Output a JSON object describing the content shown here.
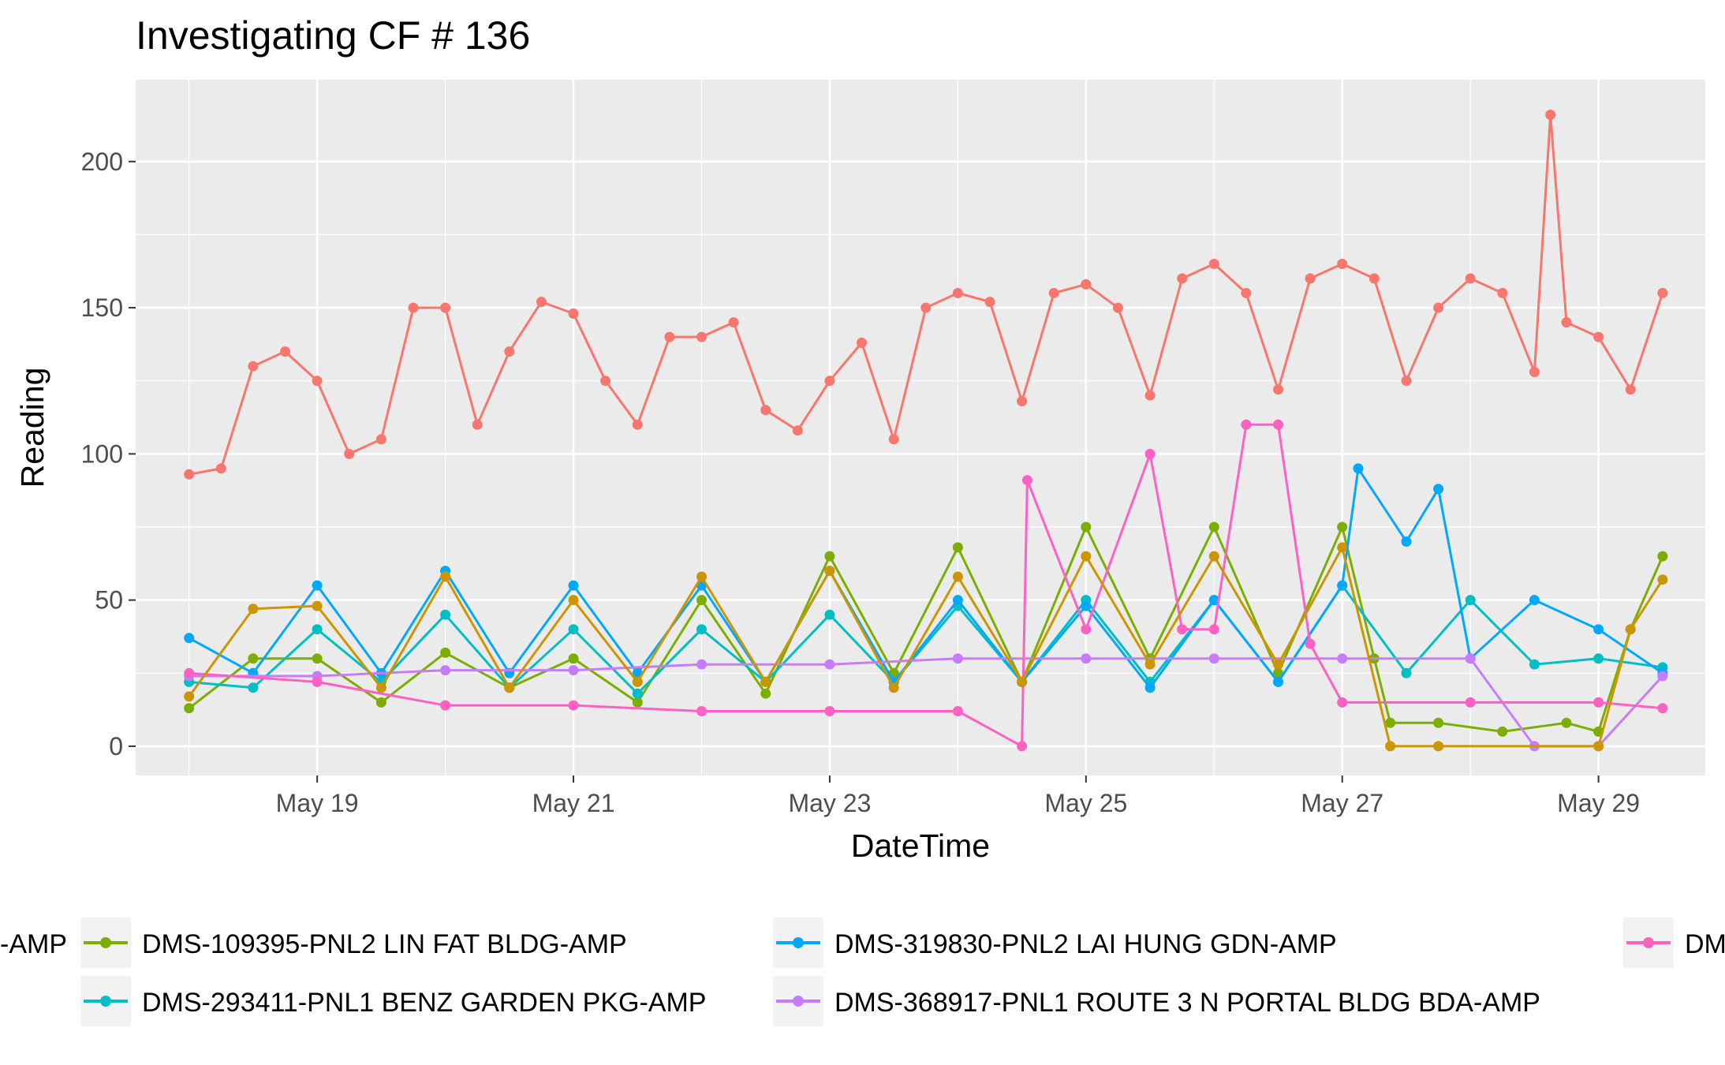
{
  "chart_data": {
    "type": "line",
    "title": "Investigating CF # 136",
    "xlabel": "DateTime",
    "ylabel": "Reading",
    "x_range": [
      "2024-05-17 14:00",
      "2024-05-29 20:00"
    ],
    "ylim": [
      -10,
      228
    ],
    "y_ticks": [
      0,
      50,
      100,
      150,
      200
    ],
    "x_ticks": [
      {
        "value": "2024-05-19",
        "label": "May 19"
      },
      {
        "value": "2024-05-21",
        "label": "May 21"
      },
      {
        "value": "2024-05-23",
        "label": "May 23"
      },
      {
        "value": "2024-05-25",
        "label": "May 25"
      },
      {
        "value": "2024-05-27",
        "label": "May 27"
      },
      {
        "value": "2024-05-29",
        "label": "May 29"
      }
    ],
    "grid": true,
    "legend_position": "bottom",
    "markers": "points",
    "series": [
      {
        "name": "-AMP",
        "color": "#F8766D",
        "x": [
          "2024-05-18 00:00",
          "2024-05-18 06:00",
          "2024-05-18 12:00",
          "2024-05-18 18:00",
          "2024-05-19 00:00",
          "2024-05-19 06:00",
          "2024-05-19 12:00",
          "2024-05-19 18:00",
          "2024-05-20 00:00",
          "2024-05-20 06:00",
          "2024-05-20 12:00",
          "2024-05-20 18:00",
          "2024-05-21 00:00",
          "2024-05-21 06:00",
          "2024-05-21 12:00",
          "2024-05-21 18:00",
          "2024-05-22 00:00",
          "2024-05-22 06:00",
          "2024-05-22 12:00",
          "2024-05-22 18:00",
          "2024-05-23 00:00",
          "2024-05-23 06:00",
          "2024-05-23 12:00",
          "2024-05-23 18:00",
          "2024-05-24 00:00",
          "2024-05-24 06:00",
          "2024-05-24 12:00",
          "2024-05-24 18:00",
          "2024-05-25 00:00",
          "2024-05-25 06:00",
          "2024-05-25 12:00",
          "2024-05-25 18:00",
          "2024-05-26 00:00",
          "2024-05-26 06:00",
          "2024-05-26 12:00",
          "2024-05-26 18:00",
          "2024-05-27 00:00",
          "2024-05-27 06:00",
          "2024-05-27 12:00",
          "2024-05-27 18:00",
          "2024-05-28 00:00",
          "2024-05-28 06:00",
          "2024-05-28 12:00",
          "2024-05-28 15:00",
          "2024-05-28 18:00",
          "2024-05-29 00:00",
          "2024-05-29 06:00",
          "2024-05-29 12:00"
        ],
        "values": [
          93,
          95,
          130,
          135,
          125,
          100,
          105,
          150,
          150,
          110,
          135,
          152,
          148,
          125,
          110,
          140,
          140,
          145,
          115,
          108,
          125,
          138,
          105,
          150,
          155,
          152,
          118,
          155,
          158,
          150,
          120,
          160,
          165,
          155,
          122,
          160,
          165,
          160,
          125,
          150,
          160,
          155,
          128,
          216,
          145,
          140,
          122,
          155
        ]
      },
      {
        "name": "DMS-109395-PNL2 LIN FAT BLDG-AMP",
        "color": "#7CAE00",
        "x": [
          "2024-05-18 00:00",
          "2024-05-18 12:00",
          "2024-05-19 00:00",
          "2024-05-19 12:00",
          "2024-05-20 00:00",
          "2024-05-20 12:00",
          "2024-05-21 00:00",
          "2024-05-21 12:00",
          "2024-05-22 00:00",
          "2024-05-22 12:00",
          "2024-05-23 00:00",
          "2024-05-23 12:00",
          "2024-05-24 00:00",
          "2024-05-24 12:00",
          "2024-05-25 00:00",
          "2024-05-25 12:00",
          "2024-05-26 00:00",
          "2024-05-26 12:00",
          "2024-05-27 00:00",
          "2024-05-27 06:00",
          "2024-05-27 09:00",
          "2024-05-27 18:00",
          "2024-05-28 06:00",
          "2024-05-28 18:00",
          "2024-05-29 00:00",
          "2024-05-29 06:00",
          "2024-05-29 12:00"
        ],
        "values": [
          13,
          30,
          30,
          15,
          32,
          20,
          30,
          15,
          50,
          18,
          65,
          25,
          68,
          22,
          75,
          30,
          75,
          25,
          75,
          30,
          8,
          8,
          5,
          8,
          5,
          40,
          65
        ]
      },
      {
        "name": "DMS-293411-PNL1 BENZ GARDEN PKG-AMP",
        "color": "#00BFC4",
        "x": [
          "2024-05-18 00:00",
          "2024-05-18 12:00",
          "2024-05-19 00:00",
          "2024-05-19 12:00",
          "2024-05-20 00:00",
          "2024-05-20 12:00",
          "2024-05-21 00:00",
          "2024-05-21 12:00",
          "2024-05-22 00:00",
          "2024-05-22 12:00",
          "2024-05-23 00:00",
          "2024-05-23 12:00",
          "2024-05-24 00:00",
          "2024-05-24 12:00",
          "2024-05-25 00:00",
          "2024-05-25 12:00",
          "2024-05-26 00:00",
          "2024-05-26 12:00",
          "2024-05-27 00:00",
          "2024-05-27 12:00",
          "2024-05-28 00:00",
          "2024-05-28 12:00",
          "2024-05-29 00:00",
          "2024-05-29 12:00"
        ],
        "values": [
          22,
          20,
          40,
          22,
          45,
          20,
          40,
          18,
          40,
          22,
          45,
          22,
          48,
          22,
          50,
          22,
          50,
          22,
          55,
          25,
          50,
          28,
          30,
          27
        ]
      },
      {
        "name": "DMS-319830-PNL2 LAI HUNG GDN-AMP",
        "color": "#00A9FF",
        "x": [
          "2024-05-18 00:00",
          "2024-05-18 12:00",
          "2024-05-19 00:00",
          "2024-05-19 12:00",
          "2024-05-20 00:00",
          "2024-05-20 12:00",
          "2024-05-21 00:00",
          "2024-05-21 12:00",
          "2024-05-22 00:00",
          "2024-05-22 12:00",
          "2024-05-23 00:00",
          "2024-05-23 12:00",
          "2024-05-24 00:00",
          "2024-05-24 12:00",
          "2024-05-25 00:00",
          "2024-05-25 12:00",
          "2024-05-26 00:00",
          "2024-05-26 12:00",
          "2024-05-27 00:00",
          "2024-05-27 03:00",
          "2024-05-27 12:00",
          "2024-05-27 18:00",
          "2024-05-28 00:00",
          "2024-05-28 12:00",
          "2024-05-29 00:00",
          "2024-05-29 12:00"
        ],
        "values": [
          37,
          25,
          55,
          25,
          60,
          25,
          55,
          25,
          55,
          22,
          60,
          22,
          50,
          22,
          48,
          20,
          50,
          22,
          55,
          95,
          70,
          88,
          30,
          50,
          40,
          25
        ]
      },
      {
        "name": "DMS-368917-PNL1 ROUTE 3 N PORTAL BLDG BDA-AMP",
        "color": "#C77CFF",
        "x": [
          "2024-05-18 00:00",
          "2024-05-19 00:00",
          "2024-05-20 00:00",
          "2024-05-21 00:00",
          "2024-05-22 00:00",
          "2024-05-23 00:00",
          "2024-05-24 00:00",
          "2024-05-25 00:00",
          "2024-05-26 00:00",
          "2024-05-27 00:00",
          "2024-05-28 00:00",
          "2024-05-28 12:00",
          "2024-05-29 00:00",
          "2024-05-29 12:00"
        ],
        "values": [
          24,
          24,
          26,
          26,
          28,
          28,
          30,
          30,
          30,
          30,
          30,
          0,
          0,
          24
        ]
      },
      {
        "name": "DM",
        "color": "#FF61C3",
        "x": [
          "2024-05-18 00:00",
          "2024-05-19 00:00",
          "2024-05-20 00:00",
          "2024-05-21 00:00",
          "2024-05-22 00:00",
          "2024-05-23 00:00",
          "2024-05-24 00:00",
          "2024-05-24 12:00",
          "2024-05-24 13:00",
          "2024-05-25 00:00",
          "2024-05-25 12:00",
          "2024-05-25 18:00",
          "2024-05-26 00:00",
          "2024-05-26 06:00",
          "2024-05-26 12:00",
          "2024-05-26 18:00",
          "2024-05-27 00:00",
          "2024-05-28 00:00",
          "2024-05-29 00:00",
          "2024-05-29 12:00"
        ],
        "values": [
          25,
          22,
          14,
          14,
          12,
          12,
          12,
          0,
          91,
          40,
          100,
          40,
          40,
          110,
          110,
          35,
          15,
          15,
          15,
          13
        ]
      },
      {
        "name": "",
        "color": "#CD9600",
        "x": [
          "2024-05-18 00:00",
          "2024-05-18 12:00",
          "2024-05-19 00:00",
          "2024-05-19 12:00",
          "2024-05-20 00:00",
          "2024-05-20 12:00",
          "2024-05-21 00:00",
          "2024-05-21 12:00",
          "2024-05-22 00:00",
          "2024-05-22 12:00",
          "2024-05-23 00:00",
          "2024-05-23 12:00",
          "2024-05-24 00:00",
          "2024-05-24 12:00",
          "2024-05-25 00:00",
          "2024-05-25 12:00",
          "2024-05-26 00:00",
          "2024-05-26 12:00",
          "2024-05-27 00:00",
          "2024-05-27 09:00",
          "2024-05-27 18:00",
          "2024-05-29 00:00",
          "2024-05-29 06:00",
          "2024-05-29 12:00"
        ],
        "values": [
          17,
          47,
          48,
          20,
          58,
          20,
          50,
          22,
          58,
          22,
          60,
          20,
          58,
          22,
          65,
          28,
          65,
          28,
          68,
          0,
          0,
          0,
          40,
          57
        ]
      }
    ]
  },
  "legend": {
    "row1": [
      "-AMP",
      "DMS-109395-PNL2 LIN FAT BLDG-AMP",
      "DMS-319830-PNL2 LAI HUNG GDN-AMP",
      "DM"
    ],
    "row2": [
      "DMS-293411-PNL1 BENZ GARDEN PKG-AMP",
      "DMS-368917-PNL1 ROUTE 3 N PORTAL BLDG BDA-AMP"
    ],
    "row1_colors": [
      "#F8766D",
      "#7CAE00",
      "#00A9FF",
      "#FF61C3"
    ],
    "row2_colors": [
      "#00BFC4",
      "#C77CFF"
    ]
  },
  "colors": {
    "panel_bg": "#EBEBEB",
    "grid": "#FFFFFF"
  }
}
